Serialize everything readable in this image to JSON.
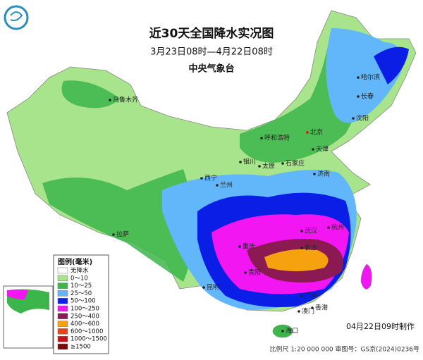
{
  "header": {
    "title": "近30天全国降水实况图",
    "period": "3月23日08时—4月22日08时",
    "agency": "中央气象台"
  },
  "legend": {
    "title": "图例(毫米)",
    "items": [
      {
        "label": "无降水",
        "color": "#ffffff"
      },
      {
        "label": "0～10",
        "color": "#a8e48c"
      },
      {
        "label": "10～25",
        "color": "#3cb54a"
      },
      {
        "label": "25～50",
        "color": "#62b6fa"
      },
      {
        "label": "50～100",
        "color": "#0a1ee6"
      },
      {
        "label": "100～250",
        "color": "#f216f2"
      },
      {
        "label": "250～400",
        "color": "#8c1a52"
      },
      {
        "label": "400～600",
        "color": "#f5a20e"
      },
      {
        "label": "600～1000",
        "color": "#e8431a"
      },
      {
        "label": "1000～1500",
        "color": "#c2121c"
      },
      {
        "label": "≥1500",
        "color": "#7a0a0a"
      }
    ]
  },
  "cities": [
    {
      "name": "乌鲁木齐"
    },
    {
      "name": "哈尔滨"
    },
    {
      "name": "长春"
    },
    {
      "name": "沈阳"
    },
    {
      "name": "呼和浩特"
    },
    {
      "name": "北京"
    },
    {
      "name": "天津"
    },
    {
      "name": "银川"
    },
    {
      "name": "太原"
    },
    {
      "name": "石家庄"
    },
    {
      "name": "济南"
    },
    {
      "name": "西宁"
    },
    {
      "name": "兰州"
    },
    {
      "name": "拉萨"
    },
    {
      "name": "武汉"
    },
    {
      "name": "杭州"
    },
    {
      "name": "重庆"
    },
    {
      "name": "长沙"
    },
    {
      "name": "贵阳"
    },
    {
      "name": "昆明"
    },
    {
      "name": "广州"
    },
    {
      "name": "香港"
    },
    {
      "name": "澳门"
    },
    {
      "name": "海口"
    }
  ],
  "footer": {
    "made": "04月22日09时制作",
    "scale": "比例尺 1:20 000 000    审图号：GS京(2024)0236号"
  }
}
